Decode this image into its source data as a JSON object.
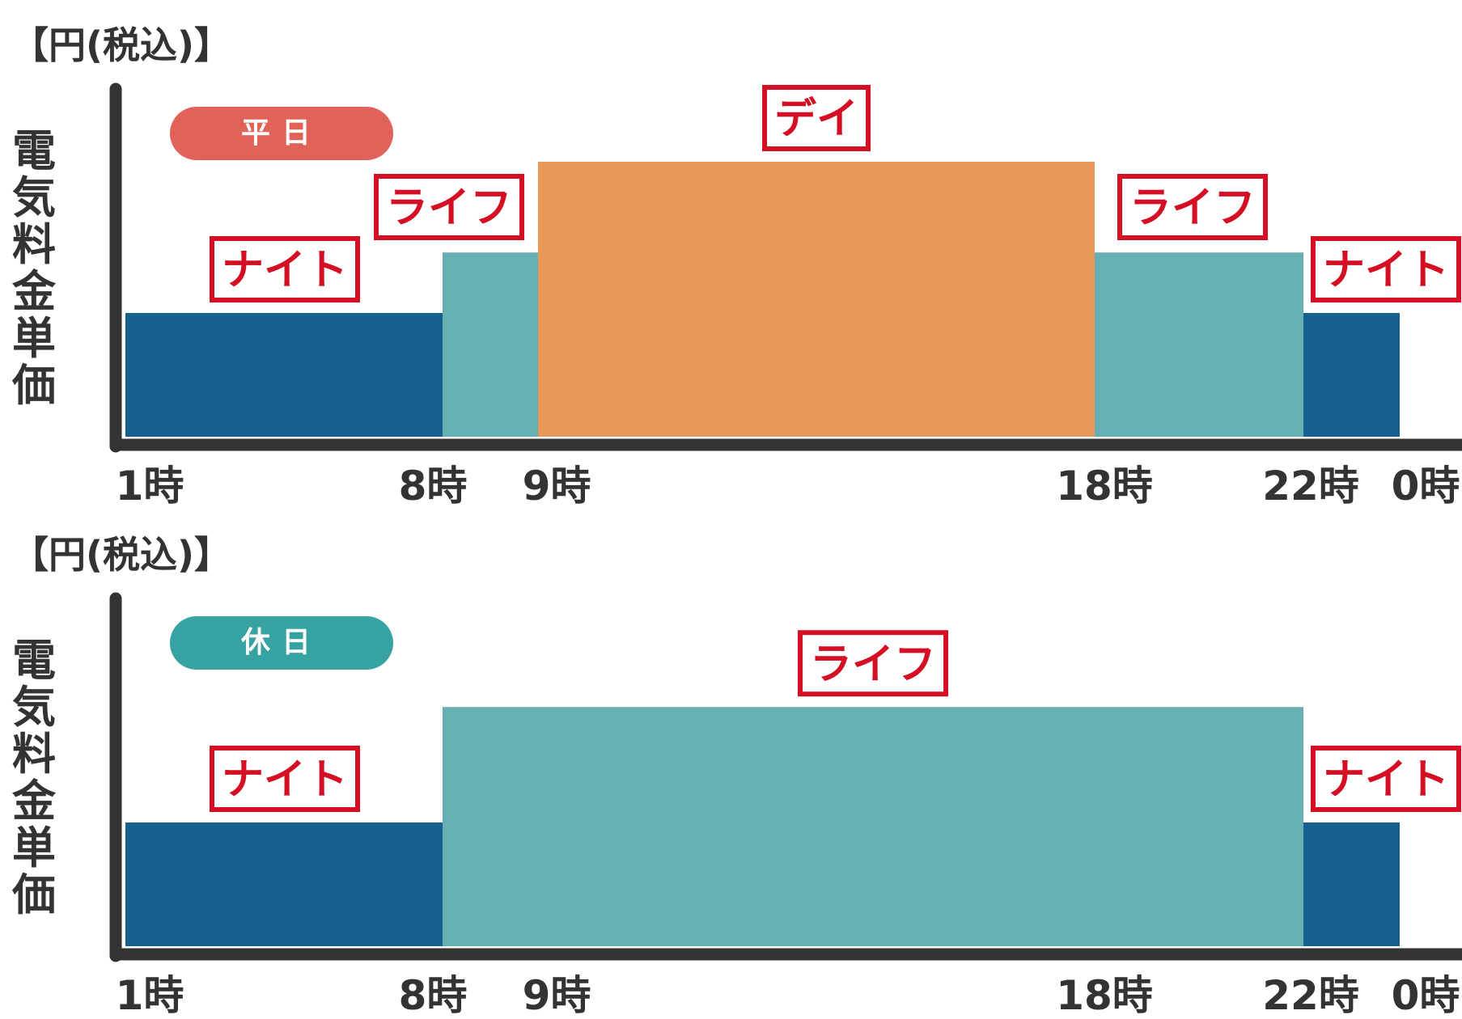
{
  "chart_data": [
    {
      "type": "bar",
      "unit_label": "【円(税込)】",
      "ylabel": "電気料金単価",
      "badge": "平日",
      "badge_color": "#e06258",
      "x_ticks": [
        "1時",
        "8時",
        "9時",
        "18時",
        "22時",
        "0時"
      ],
      "segments": [
        {
          "label": "ナイト",
          "start_hour": 1,
          "end_hour": 8,
          "level": 0.45,
          "color": "#15608e"
        },
        {
          "label": "ライフ",
          "start_hour": 8,
          "end_hour": 9,
          "level": 0.67,
          "color": "#66afb2"
        },
        {
          "label": "デイ",
          "start_hour": 9,
          "end_hour": 18,
          "level": 1.0,
          "color": "#e8995a"
        },
        {
          "label": "ライフ",
          "start_hour": 18,
          "end_hour": 22,
          "level": 0.67,
          "color": "#66afb2"
        },
        {
          "label": "ナイト",
          "start_hour": 22,
          "end_hour": 24,
          "level": 0.45,
          "color": "#15608e"
        }
      ]
    },
    {
      "type": "bar",
      "unit_label": "【円(税込)】",
      "ylabel": "電気料金単価",
      "badge": "休日",
      "badge_color": "#36a2a1",
      "x_ticks": [
        "1時",
        "8時",
        "9時",
        "18時",
        "22時",
        "0時"
      ],
      "segments": [
        {
          "label": "ナイト",
          "start_hour": 1,
          "end_hour": 8,
          "level": 0.45,
          "color": "#15608e"
        },
        {
          "label": "ライフ",
          "start_hour": 8,
          "end_hour": 22,
          "level": 0.87,
          "color": "#66afb2"
        },
        {
          "label": "ナイト",
          "start_hour": 22,
          "end_hour": 24,
          "level": 0.45,
          "color": "#15608e"
        }
      ]
    }
  ]
}
